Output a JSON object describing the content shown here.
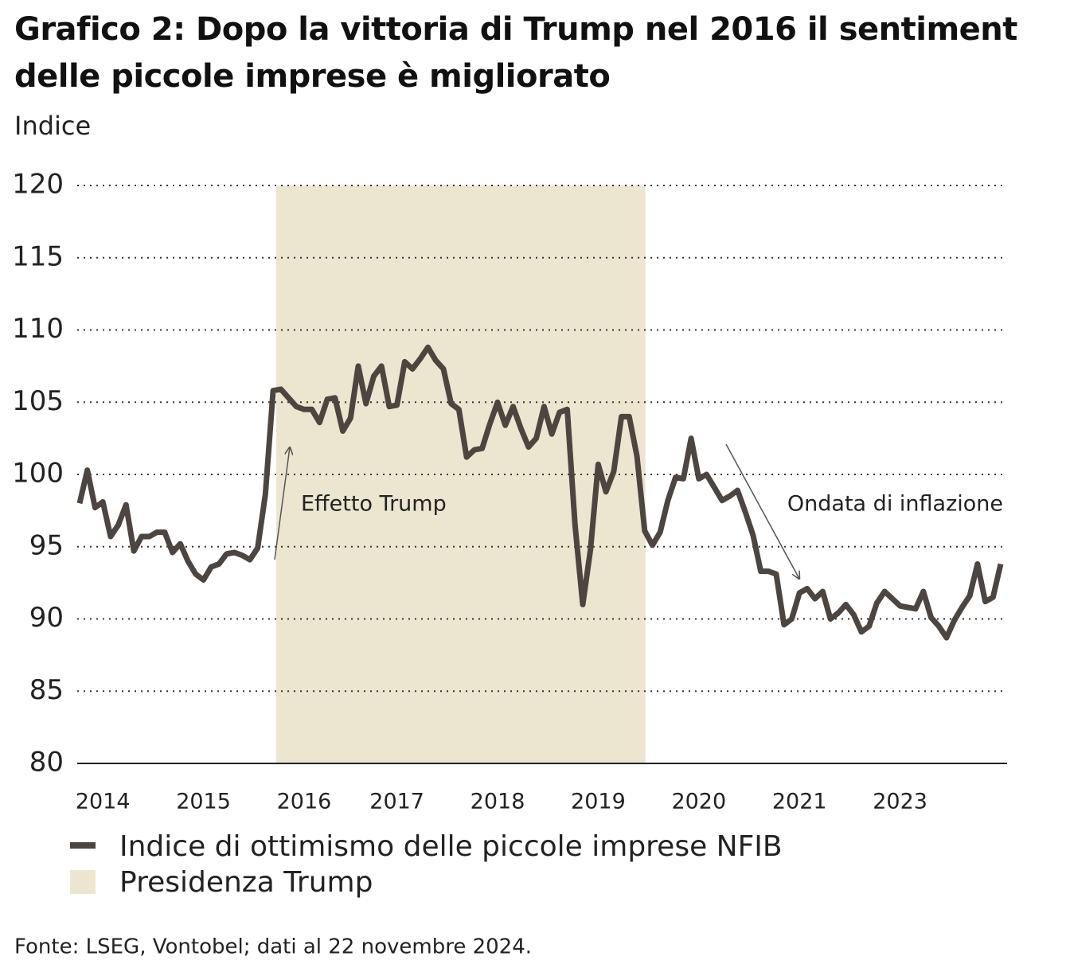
{
  "chart_data": {
    "type": "line",
    "title": "Grafico 2: Dopo la vittoria di Trump nel 2016 il sentiment delle piccole imprese è migliorato",
    "y_label": "Indice",
    "source": "Fonte: LSEG, Vontobel; dati al 22 novembre 2024.",
    "categories": [
      null,
      null,
      null,
      "2014",
      null,
      null,
      null,
      null,
      null,
      null,
      null,
      null,
      null,
      null,
      null,
      null,
      "2015",
      null,
      null,
      null,
      null,
      null,
      null,
      null,
      null,
      null,
      null,
      null,
      null,
      "2016",
      null,
      null,
      null,
      null,
      null,
      null,
      null,
      null,
      null,
      null,
      null,
      "2017",
      null,
      null,
      null,
      null,
      null,
      null,
      null,
      null,
      null,
      null,
      null,
      null,
      "2018",
      null,
      null,
      null,
      null,
      null,
      null,
      null,
      null,
      null,
      null,
      null,
      null,
      "2019",
      null,
      null,
      null,
      null,
      null,
      null,
      null,
      null,
      null,
      null,
      null,
      null,
      "2020",
      null,
      null,
      null,
      null,
      null,
      null,
      null,
      null,
      null,
      null,
      null,
      null,
      "2021",
      null,
      null,
      null,
      null,
      null,
      null,
      null,
      null,
      null,
      null,
      null,
      null,
      "2023",
      null,
      null,
      null,
      null,
      null,
      null,
      null,
      null,
      null,
      null,
      null,
      null,
      null
    ],
    "series": [
      {
        "name": "Indice di ottimismo delle piccole imprese NFIB",
        "color": "#4d4540",
        "values": [
          98.0,
          100.3,
          97.7,
          98.1,
          95.7,
          96.5,
          97.9,
          94.7,
          95.7,
          95.7,
          96.0,
          96.0,
          94.6,
          95.2,
          94.0,
          93.1,
          92.7,
          93.6,
          93.8,
          94.5,
          94.6,
          94.4,
          94.1,
          94.9,
          98.6,
          105.8,
          105.9,
          105.3,
          104.7,
          104.5,
          104.5,
          103.6,
          105.2,
          105.3,
          103.0,
          103.9,
          107.5,
          104.9,
          106.8,
          107.5,
          104.7,
          104.8,
          107.8,
          107.3,
          108.0,
          108.8,
          107.9,
          107.3,
          104.9,
          104.5,
          101.2,
          101.7,
          101.8,
          103.5,
          105.0,
          103.4,
          104.7,
          103.2,
          101.9,
          102.5,
          104.7,
          102.8,
          104.3,
          104.5,
          96.5,
          91.0,
          94.8,
          100.7,
          98.8,
          100.2,
          104.0,
          104.0,
          101.3,
          96.1,
          95.1,
          96.0,
          98.2,
          99.8,
          99.7,
          102.5,
          99.7,
          100.0,
          99.1,
          98.2,
          98.5,
          98.9,
          97.4,
          95.8,
          93.3,
          93.3,
          93.1,
          89.6,
          90.0,
          91.8,
          92.1,
          91.4,
          91.9,
          90.0,
          90.4,
          91.0,
          90.3,
          89.1,
          89.5,
          91.1,
          91.9,
          91.4,
          90.9,
          90.8,
          90.7,
          91.9,
          90.1,
          89.5,
          88.7,
          89.9,
          90.8,
          91.6,
          93.8,
          91.2,
          91.5,
          93.8
        ]
      }
    ],
    "bands": [
      {
        "name": "Presidenza Trump",
        "color": "#ece6d0",
        "start": 25.4,
        "end": 73.1
      }
    ],
    "annotations": [
      "Effetto Trump",
      "Ondata di inflazione"
    ],
    "ylim": [
      80,
      120
    ],
    "yticks": [
      80,
      85,
      90,
      95,
      100,
      105,
      110,
      115,
      120
    ],
    "grid": true
  }
}
